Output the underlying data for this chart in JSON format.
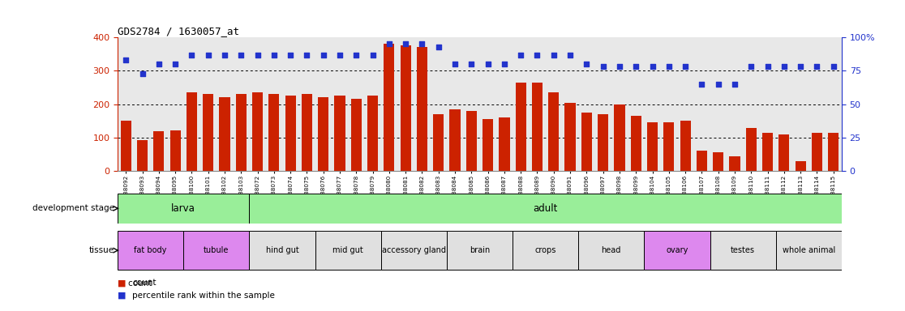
{
  "title": "GDS2784 / 1630057_at",
  "samples": [
    "GSM188092",
    "GSM188093",
    "GSM188094",
    "GSM188095",
    "GSM188100",
    "GSM188101",
    "GSM188102",
    "GSM188103",
    "GSM188072",
    "GSM188073",
    "GSM188074",
    "GSM188075",
    "GSM188076",
    "GSM188077",
    "GSM188078",
    "GSM188079",
    "GSM188080",
    "GSM188081",
    "GSM188082",
    "GSM188083",
    "GSM188084",
    "GSM188085",
    "GSM188086",
    "GSM188087",
    "GSM188088",
    "GSM188089",
    "GSM188090",
    "GSM188091",
    "GSM188096",
    "GSM188097",
    "GSM188098",
    "GSM188099",
    "GSM188104",
    "GSM188105",
    "GSM188106",
    "GSM188107",
    "GSM188108",
    "GSM188109",
    "GSM188110",
    "GSM188111",
    "GSM188112",
    "GSM188113",
    "GSM188114",
    "GSM188115"
  ],
  "counts": [
    150,
    93,
    120,
    122,
    235,
    230,
    220,
    230,
    235,
    230,
    225,
    230,
    220,
    225,
    215,
    225,
    380,
    375,
    370,
    170,
    185,
    180,
    155,
    160,
    265,
    265,
    235,
    205,
    175,
    170,
    200,
    165,
    145,
    145,
    150,
    60,
    55,
    45,
    130,
    115,
    110,
    30,
    115,
    115
  ],
  "percentiles": [
    83,
    73,
    80,
    80,
    87,
    87,
    87,
    87,
    87,
    87,
    87,
    87,
    87,
    87,
    87,
    87,
    95,
    95,
    95,
    93,
    80,
    80,
    80,
    80,
    87,
    87,
    87,
    87,
    80,
    78,
    78,
    78,
    78,
    78,
    78,
    65,
    65,
    65,
    78,
    78,
    78,
    78,
    78,
    78
  ],
  "bar_color": "#cc2200",
  "dot_color": "#2233cc",
  "left_ylim": [
    0,
    400
  ],
  "right_ylim": [
    0,
    100
  ],
  "left_yticks": [
    0,
    100,
    200,
    300,
    400
  ],
  "right_yticks": [
    0,
    25,
    50,
    75,
    100
  ],
  "grid_values": [
    100,
    200,
    300
  ],
  "dev_stages": [
    {
      "label": "larva",
      "start": 0,
      "end": 8,
      "color": "#99ee99"
    },
    {
      "label": "adult",
      "start": 8,
      "end": 44,
      "color": "#99ee99"
    }
  ],
  "tissues": [
    {
      "label": "fat body",
      "start": 0,
      "end": 4,
      "color": "#dd88ee"
    },
    {
      "label": "tubule",
      "start": 4,
      "end": 8,
      "color": "#dd88ee"
    },
    {
      "label": "hind gut",
      "start": 8,
      "end": 12,
      "color": "#e0e0e0"
    },
    {
      "label": "mid gut",
      "start": 12,
      "end": 16,
      "color": "#e0e0e0"
    },
    {
      "label": "accessory gland",
      "start": 16,
      "end": 20,
      "color": "#e0e0e0"
    },
    {
      "label": "brain",
      "start": 20,
      "end": 24,
      "color": "#e0e0e0"
    },
    {
      "label": "crops",
      "start": 24,
      "end": 28,
      "color": "#e0e0e0"
    },
    {
      "label": "head",
      "start": 28,
      "end": 32,
      "color": "#e0e0e0"
    },
    {
      "label": "ovary",
      "start": 32,
      "end": 36,
      "color": "#dd88ee"
    },
    {
      "label": "testes",
      "start": 36,
      "end": 40,
      "color": "#e0e0e0"
    },
    {
      "label": "whole animal",
      "start": 40,
      "end": 44,
      "color": "#e0e0e0"
    }
  ],
  "bg_color": "#e8e8e8",
  "fig_width": 11.16,
  "fig_height": 3.84,
  "dpi": 100
}
